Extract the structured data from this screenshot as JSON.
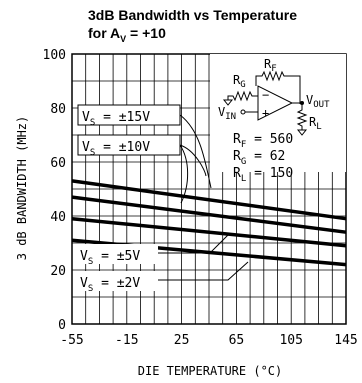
{
  "chart_data": {
    "type": "line",
    "title_line1": "3dB Bandwidth vs Temperature",
    "title_line2_prefix": "for A",
    "title_line2_sub": "V",
    "title_line2_suffix": " = +10",
    "xlabel": "DIE TEMPERATURE (°C)",
    "ylabel": "3 dB BANDWIDTH (MHz)",
    "xlim": [
      -55,
      145
    ],
    "ylim": [
      0,
      100
    ],
    "x_ticks": [
      -55,
      -15,
      25,
      65,
      105,
      145
    ],
    "y_ticks": [
      0,
      20,
      40,
      60,
      80,
      100
    ],
    "x_minor_step": 10,
    "y_minor_step": 10,
    "grid": true,
    "series": [
      {
        "name": "VS = ±15V",
        "x": [
          -55,
          145
        ],
        "y": [
          53,
          39
        ]
      },
      {
        "name": "VS = ±10V",
        "x": [
          -55,
          145
        ],
        "y": [
          47,
          34
        ]
      },
      {
        "name": "VS = ±5V",
        "x": [
          -55,
          145
        ],
        "y": [
          39,
          29
        ]
      },
      {
        "name": "VS = ±2V",
        "x": [
          -55,
          145
        ],
        "y": [
          31,
          22
        ]
      }
    ],
    "annotations": {
      "vs15": {
        "v": "V",
        "s": "S",
        "rest": " = ±15V"
      },
      "vs10": {
        "v": "V",
        "s": "S",
        "rest": " = ±10V"
      },
      "vs5": {
        "v": "V",
        "s": "S",
        "rest": " = ±5V"
      },
      "vs2": {
        "v": "V",
        "s": "S",
        "rest": " = ±2V"
      }
    },
    "circuit": {
      "rf_label": "R",
      "rf_sub": "F",
      "rg_label": "R",
      "rg_sub": "G",
      "rl_label": "R",
      "rl_sub": "L",
      "vin_label": "V",
      "vin_sub": "IN",
      "vout_label": "V",
      "vout_sub": "OUT",
      "minus": "−",
      "plus": "+",
      "rf_value": {
        "r": "R",
        "sub": "F",
        "rest": " = 560"
      },
      "rg_value": {
        "r": "R",
        "sub": "G",
        "rest": " = 62"
      },
      "rl_value": {
        "r": "R",
        "sub": "L",
        "rest": " = 150"
      }
    }
  }
}
